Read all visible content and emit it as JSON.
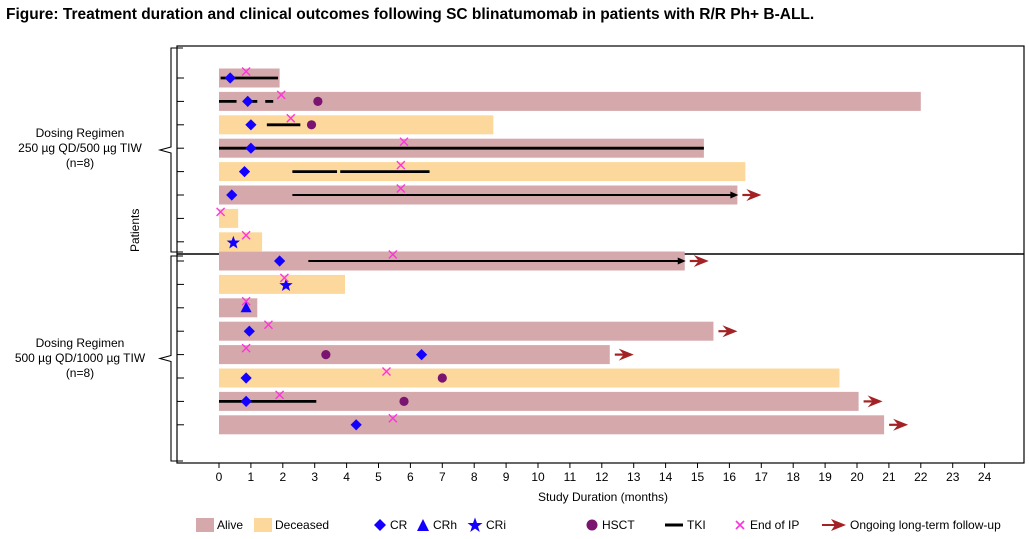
{
  "title": "Figure: Treatment duration and clinical outcomes following SC blinatumomab in patients with R/R Ph+ B-ALL.",
  "colors": {
    "alive": "#d5a8ab",
    "deceased": "#fdd89c",
    "marker_blue": "#1400ff",
    "hsct": "#7b1470",
    "tki": "#000000",
    "end_ip": "#ff33dd",
    "arrow": "#a32225"
  },
  "chart_data": {
    "type": "swimmer",
    "xlabel": "Study Duration (months)",
    "ylabel": "Patients",
    "xlim": [
      -0.5,
      25
    ],
    "xticks": [
      0,
      1,
      2,
      3,
      4,
      5,
      6,
      7,
      8,
      9,
      10,
      11,
      12,
      13,
      14,
      15,
      16,
      17,
      18,
      19,
      20,
      21,
      22,
      23,
      24
    ],
    "groups": [
      {
        "label_lines": [
          "Dosing Regimen",
          "250 µg QD/500 µg TIW",
          "(n=8)"
        ],
        "patients": [
          {
            "status": "alive",
            "duration": 1.9,
            "ongoing": false,
            "tki": [
              [
                0.05,
                1.85
              ]
            ],
            "tki_arrow": false,
            "cr": [
              0.35
            ],
            "crh": [],
            "cri": [],
            "hsct": [],
            "end_ip": [
              0.85
            ]
          },
          {
            "status": "alive",
            "duration": 22.0,
            "ongoing": false,
            "tki": [
              [
                0.0,
                0.55
              ],
              [
                0.8,
                1.2
              ],
              [
                1.45,
                1.7
              ]
            ],
            "tki_arrow": false,
            "cr": [
              0.9
            ],
            "crh": [],
            "cri": [],
            "hsct": [
              3.1
            ],
            "end_ip": [
              1.95
            ]
          },
          {
            "status": "deceased",
            "duration": 8.6,
            "ongoing": false,
            "tki": [
              [
                1.5,
                2.55
              ]
            ],
            "tki_arrow": false,
            "cr": [
              1.0
            ],
            "crh": [],
            "cri": [],
            "hsct": [
              2.9
            ],
            "end_ip": [
              2.25
            ]
          },
          {
            "status": "alive",
            "duration": 15.2,
            "ongoing": false,
            "tki": [
              [
                0.0,
                15.2
              ]
            ],
            "tki_arrow": false,
            "cr": [
              1.0
            ],
            "crh": [],
            "cri": [],
            "hsct": [],
            "end_ip": [
              5.8
            ]
          },
          {
            "status": "deceased",
            "duration": 16.5,
            "ongoing": false,
            "tki": [
              [
                2.3,
                3.7
              ],
              [
                3.8,
                6.6
              ]
            ],
            "tki_arrow": false,
            "cr": [
              0.8
            ],
            "crh": [],
            "cri": [],
            "hsct": [],
            "end_ip": [
              5.7
            ]
          },
          {
            "status": "alive",
            "duration": 16.25,
            "ongoing": true,
            "tki": [
              [
                2.3,
                16.25
              ]
            ],
            "tki_arrow": true,
            "cr": [
              0.4
            ],
            "crh": [],
            "cri": [],
            "hsct": [],
            "end_ip": [
              5.7
            ]
          },
          {
            "status": "deceased",
            "duration": 0.6,
            "ongoing": false,
            "tki": [],
            "tki_arrow": false,
            "cr": [],
            "crh": [],
            "cri": [],
            "hsct": [],
            "end_ip": [
              0.05
            ]
          },
          {
            "status": "deceased",
            "duration": 1.35,
            "ongoing": false,
            "tki": [],
            "tki_arrow": false,
            "cr": [],
            "crh": [],
            "cri": [
              0.45
            ],
            "hsct": [],
            "end_ip": [
              0.85
            ]
          }
        ]
      },
      {
        "label_lines": [
          "Dosing Regimen",
          "500 µg QD/1000 µg TIW",
          "(n=8)"
        ],
        "patients": [
          {
            "status": "alive",
            "duration": 14.6,
            "ongoing": true,
            "tki": [
              [
                2.8,
                14.6
              ]
            ],
            "tki_arrow": true,
            "cr": [
              1.9
            ],
            "crh": [],
            "cri": [],
            "hsct": [],
            "end_ip": [
              5.45
            ]
          },
          {
            "status": "deceased",
            "duration": 3.95,
            "ongoing": false,
            "tki": [],
            "tki_arrow": false,
            "cr": [],
            "crh": [],
            "cri": [
              2.1
            ],
            "hsct": [],
            "end_ip": [
              2.05
            ]
          },
          {
            "status": "alive",
            "duration": 1.2,
            "ongoing": false,
            "tki": [],
            "tki_arrow": false,
            "cr": [],
            "crh": [
              0.85
            ],
            "cri": [],
            "hsct": [],
            "end_ip": [
              0.85
            ]
          },
          {
            "status": "alive",
            "duration": 15.5,
            "ongoing": true,
            "tki": [],
            "tki_arrow": false,
            "cr": [
              0.95
            ],
            "crh": [],
            "cri": [],
            "hsct": [],
            "end_ip": [
              1.55
            ]
          },
          {
            "status": "alive",
            "duration": 12.25,
            "ongoing": true,
            "tki": [],
            "tki_arrow": false,
            "cr": [
              6.35
            ],
            "crh": [],
            "cri": [],
            "hsct": [
              3.35
            ],
            "end_ip": [
              0.85
            ]
          },
          {
            "status": "deceased",
            "duration": 19.45,
            "ongoing": false,
            "tki": [],
            "tki_arrow": false,
            "cr": [
              0.85
            ],
            "crh": [],
            "cri": [],
            "hsct": [
              7.0
            ],
            "end_ip": [
              5.25
            ]
          },
          {
            "status": "alive",
            "duration": 20.05,
            "ongoing": true,
            "tki": [
              [
                0.0,
                3.05
              ]
            ],
            "tki_arrow": false,
            "cr": [
              0.85
            ],
            "crh": [],
            "cri": [],
            "hsct": [
              5.8
            ],
            "end_ip": [
              1.9
            ]
          },
          {
            "status": "alive",
            "duration": 20.85,
            "ongoing": true,
            "tki": [],
            "tki_arrow": false,
            "cr": [
              4.3
            ],
            "crh": [],
            "cri": [],
            "hsct": [],
            "end_ip": [
              5.45
            ]
          }
        ]
      }
    ],
    "legend": [
      {
        "key": "alive",
        "label": "Alive"
      },
      {
        "key": "deceased",
        "label": "Deceased"
      },
      {
        "key": "cr",
        "label": "CR"
      },
      {
        "key": "crh",
        "label": "CRh"
      },
      {
        "key": "cri",
        "label": "CRi"
      },
      {
        "key": "hsct",
        "label": "HSCT"
      },
      {
        "key": "tki",
        "label": "TKI"
      },
      {
        "key": "end_ip",
        "label": "End of IP"
      },
      {
        "key": "ongoing",
        "label": "Ongoing long-term follow-up"
      }
    ]
  }
}
